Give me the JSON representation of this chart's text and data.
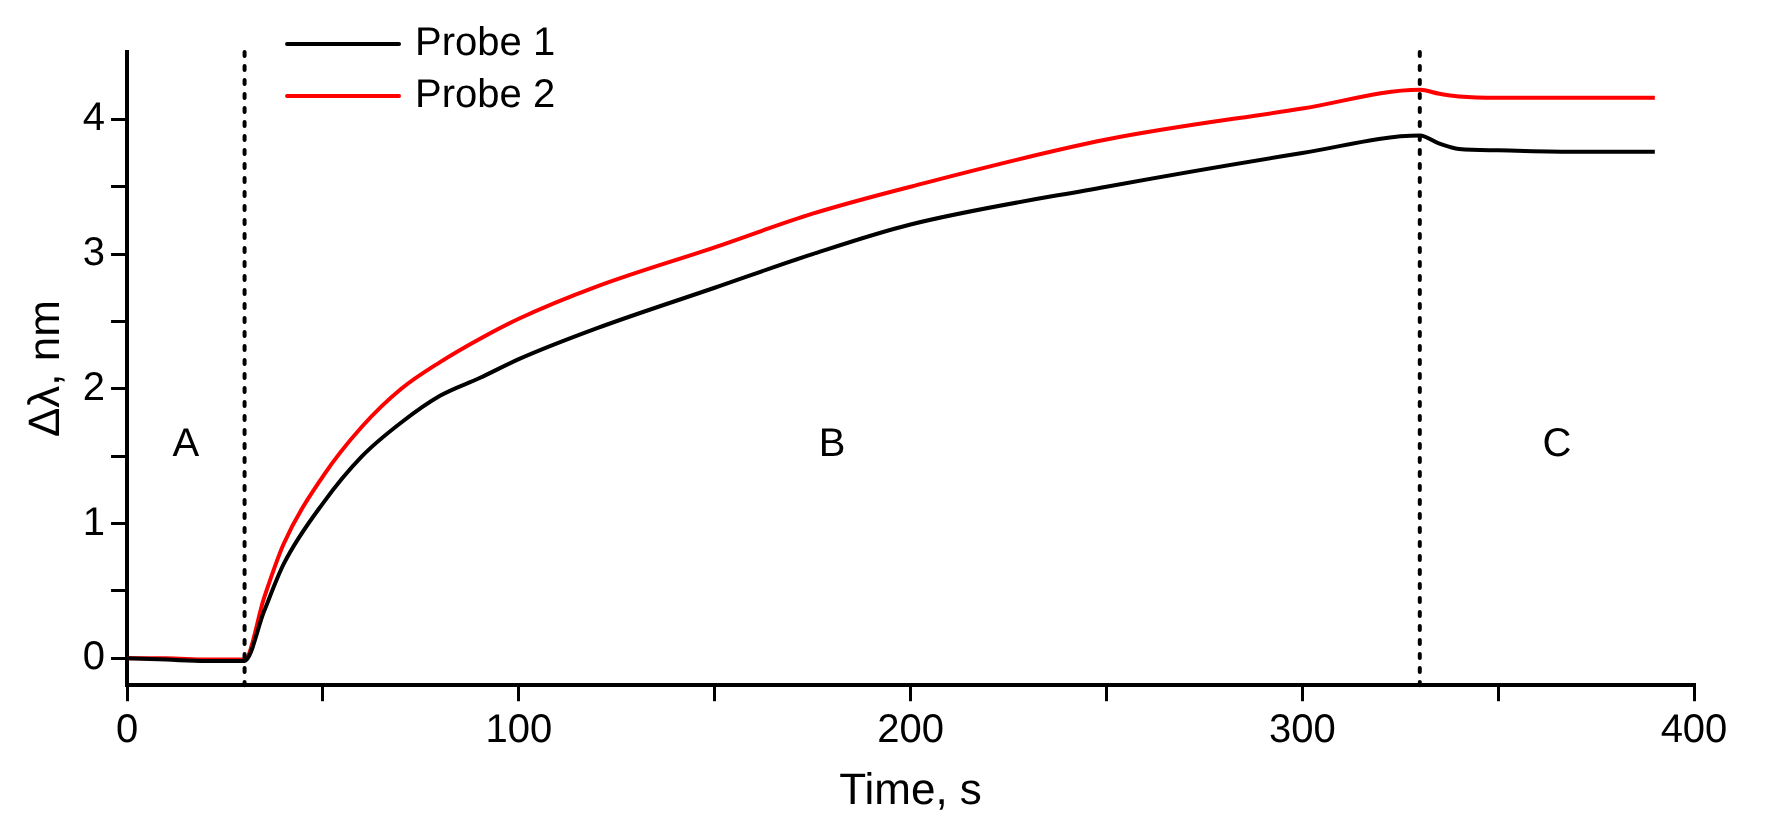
{
  "chart_data": {
    "type": "line",
    "xlabel": "Time, s",
    "ylabel": "Δλ, nm",
    "xlim": [
      0,
      400
    ],
    "xticks": [
      0,
      {
        "value": 50,
        "label": null
      },
      100,
      {
        "value": 150,
        "label": null
      },
      200,
      {
        "value": 250,
        "label": null
      },
      300,
      {
        "value": 350,
        "label": null
      },
      400
    ],
    "ylim": [
      -0.2,
      4.5
    ],
    "yticks": [
      0,
      {
        "value": 0.5,
        "label": null
      },
      1,
      {
        "value": 1.5,
        "label": null
      },
      2,
      {
        "value": 2.5,
        "label": null
      },
      3,
      {
        "value": 3.5,
        "label": null
      },
      4
    ],
    "grid": false,
    "legend": "top left",
    "marker": "none",
    "line_style": "solid",
    "x": [
      0,
      10,
      20,
      30,
      35,
      40,
      50,
      60,
      70,
      80,
      90,
      100,
      120,
      150,
      175,
      200,
      250,
      300,
      330,
      335,
      340,
      350,
      370,
      390
    ],
    "series": [
      {
        "name": "Probe 1",
        "color": "#000000",
        "values": [
          0,
          -0.01,
          -0.02,
          -0.02,
          0.35,
          0.7,
          1.15,
          1.5,
          1.75,
          1.95,
          2.08,
          2.22,
          2.45,
          2.75,
          3.0,
          3.22,
          3.5,
          3.75,
          3.88,
          3.82,
          3.78,
          3.77,
          3.76,
          3.76
        ]
      },
      {
        "name": "Probe 2",
        "color": "#ff0000",
        "values": [
          0,
          0,
          -0.01,
          -0.01,
          0.45,
          0.85,
          1.35,
          1.72,
          2.0,
          2.2,
          2.37,
          2.52,
          2.76,
          3.05,
          3.3,
          3.5,
          3.85,
          4.08,
          4.22,
          4.19,
          4.17,
          4.16,
          4.16,
          4.16
        ]
      }
    ],
    "ref_lines": [
      {
        "axis": "x",
        "value": 30,
        "color": "#000000",
        "line_style": "dotted"
      },
      {
        "axis": "x",
        "value": 330,
        "color": "#000000",
        "line_style": "dotted"
      }
    ],
    "annotations": [
      "A",
      "B",
      "C"
    ]
  }
}
